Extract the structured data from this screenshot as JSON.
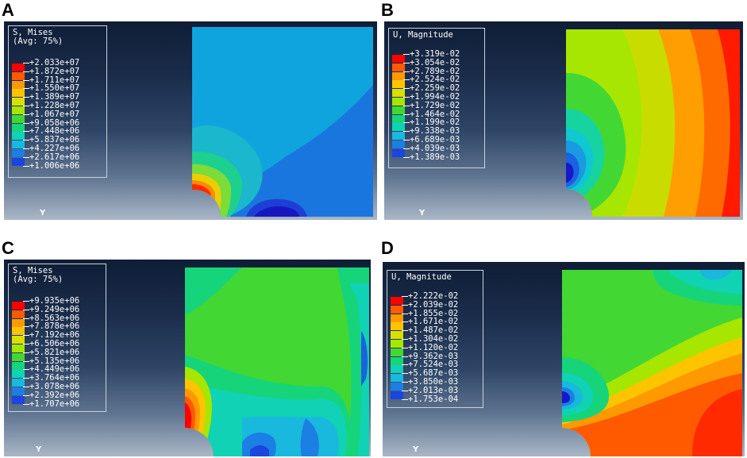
{
  "panels": [
    {
      "letter": "A",
      "legend_title_1": "S, Mises",
      "legend_title_2": "(Avg: 75%)",
      "legend_values": [
        "+2.033e+07",
        "+1.872e+07",
        "+1.711e+07",
        "+1.550e+07",
        "+1.389e+07",
        "+1.228e+07",
        "+1.067e+07",
        "+9.058e+06",
        "+7.448e+06",
        "+5.837e+06",
        "+4.227e+06",
        "+2.617e+06",
        "+1.006e+06"
      ],
      "axis_label": "Y"
    },
    {
      "letter": "B",
      "legend_title_1": "U, Magnitude",
      "legend_values": [
        "+3.319e-02",
        "+3.054e-02",
        "+2.789e-02",
        "+2.524e-02",
        "+2.259e-02",
        "+1.994e-02",
        "+1.729e-02",
        "+1.464e-02",
        "+1.199e-02",
        "+9.338e-03",
        "+6.689e-03",
        "+4.039e-03",
        "+1.389e-03"
      ],
      "axis_label": "Y"
    },
    {
      "letter": "C",
      "legend_title_1": "S, Mises",
      "legend_title_2": "(Avg: 75%)",
      "legend_values": [
        "+9.935e+06",
        "+9.249e+06",
        "+8.563e+06",
        "+7.878e+06",
        "+7.192e+06",
        "+6.506e+06",
        "+5.821e+06",
        "+5.135e+06",
        "+4.449e+06",
        "+3.764e+06",
        "+3.078e+06",
        "+2.392e+06",
        "+1.707e+06"
      ],
      "axis_label": "Y"
    },
    {
      "letter": "D",
      "legend_title_1": "U, Magnitude",
      "legend_values": [
        "+2.222e-02",
        "+2.039e-02",
        "+1.855e-02",
        "+1.671e-02",
        "+1.487e-02",
        "+1.304e-02",
        "+1.120e-02",
        "+9.362e-03",
        "+7.524e-03",
        "+5.687e-03",
        "+3.850e-03",
        "+2.013e-03",
        "+1.753e-04"
      ],
      "axis_label": "Y"
    }
  ],
  "colormap": [
    "#ff0000",
    "#ff5a00",
    "#ff9900",
    "#ffc400",
    "#d9e000",
    "#a6e600",
    "#43d733",
    "#16d47a",
    "#10d2b4",
    "#19b8dd",
    "#1b7fe4",
    "#1a45de",
    "#1313ce"
  ]
}
